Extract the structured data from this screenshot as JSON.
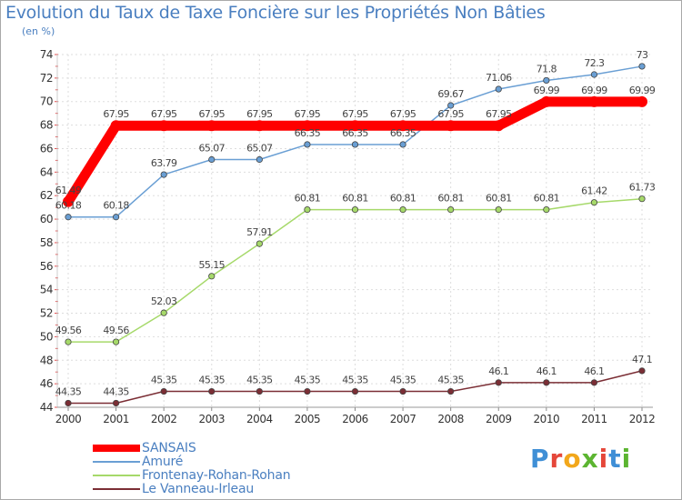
{
  "chart_data": {
    "type": "line",
    "title": "Evolution du Taux de Taxe Foncière sur les Propriétés Non Bâties",
    "ylabel": "(en %)",
    "xlabel": "",
    "ylim": [
      44,
      74
    ],
    "yticks": [
      44,
      46,
      48,
      50,
      52,
      54,
      56,
      58,
      60,
      62,
      64,
      66,
      68,
      70,
      72,
      74
    ],
    "categories": [
      "2000",
      "2001",
      "2002",
      "2003",
      "2004",
      "2005",
      "2006",
      "2007",
      "2008",
      "2009",
      "2010",
      "2011",
      "2012"
    ],
    "grid": true,
    "legend_position": "bottom-left",
    "series": [
      {
        "name": "SANSAIS",
        "color": "#ff0000",
        "values": [
          61.49,
          67.95,
          67.95,
          67.95,
          67.95,
          67.95,
          67.95,
          67.95,
          67.95,
          67.95,
          69.99,
          69.99,
          69.99
        ],
        "labels": [
          "61.49",
          "67.95",
          "67.95",
          "67.95",
          "67.95",
          "67.95",
          "67.95",
          "67.95",
          "67.95",
          "67.95",
          "69.99",
          "69.99",
          "69.99"
        ]
      },
      {
        "name": "Amuré",
        "color": "#6a9fd4",
        "values": [
          60.18,
          60.18,
          63.79,
          65.07,
          65.07,
          66.35,
          66.35,
          66.35,
          69.67,
          71.06,
          71.8,
          72.3,
          73
        ],
        "labels": [
          "60.18",
          "60.18",
          "63.79",
          "65.07",
          "65.07",
          "66.35",
          "66.35",
          "66.35",
          "69.67",
          "71.06",
          "71.8",
          "72.3",
          "73"
        ]
      },
      {
        "name": "Frontenay-Rohan-Rohan",
        "color": "#a6d96a",
        "values": [
          49.56,
          49.56,
          52.03,
          55.15,
          57.91,
          60.81,
          60.81,
          60.81,
          60.81,
          60.81,
          60.81,
          61.42,
          61.73
        ],
        "labels": [
          "49.56",
          "49.56",
          "52.03",
          "55.15",
          "57.91",
          "60.81",
          "60.81",
          "60.81",
          "60.81",
          "60.81",
          "60.81",
          "61.42",
          "61.73"
        ]
      },
      {
        "name": "Le Vanneau-Irleau",
        "color": "#7b2e35",
        "values": [
          44.35,
          44.35,
          45.35,
          45.35,
          45.35,
          45.35,
          45.35,
          45.35,
          45.35,
          46.1,
          46.1,
          46.1,
          47.1
        ],
        "labels": [
          "44.35",
          "44.35",
          "45.35",
          "45.35",
          "45.35",
          "45.35",
          "45.35",
          "45.35",
          "45.35",
          "46.1",
          "46.1",
          "46.1",
          "47.1"
        ]
      }
    ]
  },
  "brand": {
    "letters": [
      "P",
      "r",
      "o",
      "x",
      "i",
      "t",
      "i"
    ],
    "colors": [
      "#3f8fd6",
      "#e5473a",
      "#f2a71b",
      "#5cb531",
      "#e5473a",
      "#3f8fd6",
      "#5cb531"
    ]
  }
}
